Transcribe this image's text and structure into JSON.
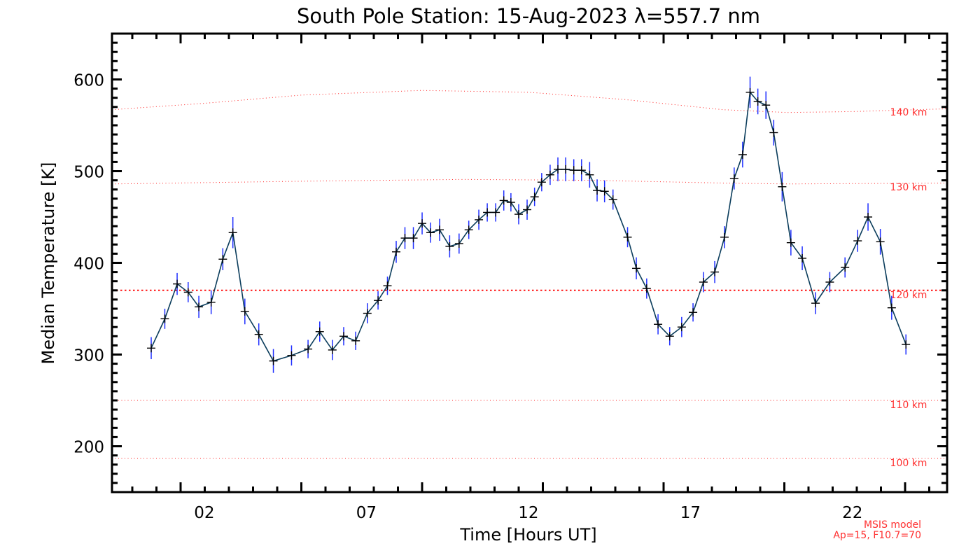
{
  "chart_data": {
    "type": "line",
    "title": "South Pole Station: 15-Aug-2023 λ=557.7 nm",
    "xlabel": "Time [Hours UT]",
    "ylabel": "Median Temperature [K]",
    "xlim": [
      -0.85,
      24.92
    ],
    "ylim": [
      150,
      650
    ],
    "x_ticks": [
      2,
      7,
      12,
      17,
      22
    ],
    "x_tick_labels": [
      "02",
      "07",
      "12",
      "17",
      "22"
    ],
    "y_ticks": [
      200,
      300,
      400,
      500,
      600
    ],
    "y_tick_labels": [
      "200",
      "300",
      "400",
      "500",
      "600"
    ],
    "grid": false,
    "series": [
      {
        "name": "Median Temperature",
        "color": "#0b3d5c",
        "marker_color": "#000000",
        "error_color": "#1f2fff",
        "x": [
          0.36,
          0.78,
          1.16,
          1.5,
          1.83,
          2.21,
          2.57,
          2.88,
          3.25,
          3.68,
          4.13,
          4.69,
          5.2,
          5.56,
          5.95,
          6.3,
          6.67,
          7.03,
          7.36,
          7.65,
          7.92,
          8.19,
          8.45,
          8.72,
          8.98,
          9.26,
          9.57,
          9.86,
          10.16,
          10.47,
          10.73,
          10.99,
          11.24,
          11.46,
          11.7,
          11.96,
          12.19,
          12.41,
          12.67,
          12.91,
          13.15,
          13.4,
          13.64,
          13.89,
          14.12,
          14.35,
          14.61,
          15.06,
          15.33,
          15.65,
          16.0,
          16.36,
          16.73,
          17.08,
          17.4,
          17.75,
          18.05,
          18.35,
          18.61,
          18.84,
          19.08,
          19.33,
          19.57,
          19.83,
          20.1,
          20.45,
          20.86,
          21.3,
          21.77,
          22.16,
          22.48,
          22.86,
          23.21,
          23.65
        ],
        "y": [
          307,
          339,
          377,
          368,
          352,
          357,
          404,
          433,
          347,
          322,
          293,
          299,
          306,
          325,
          305,
          320,
          315,
          345,
          359,
          375,
          412,
          427,
          427,
          443,
          433,
          436,
          418,
          421,
          436,
          447,
          455,
          455,
          468,
          466,
          453,
          458,
          472,
          488,
          496,
          502,
          502,
          501,
          501,
          496,
          479,
          478,
          469,
          428,
          394,
          372,
          333,
          320,
          330,
          346,
          379,
          390,
          428,
          492,
          518,
          586,
          576,
          572,
          542,
          483,
          422,
          405,
          356,
          379,
          395,
          424,
          450,
          423,
          351,
          311
        ],
        "error": [
          12,
          11,
          12,
          11,
          12,
          13,
          12,
          17,
          14,
          12,
          13,
          11,
          10,
          11,
          11,
          10,
          10,
          11,
          10,
          10,
          12,
          12,
          12,
          12,
          11,
          12,
          12,
          11,
          10,
          11,
          10,
          10,
          11,
          10,
          11,
          11,
          10,
          10,
          11,
          13,
          13,
          12,
          12,
          14,
          12,
          12,
          11,
          11,
          12,
          11,
          11,
          10,
          11,
          10,
          11,
          12,
          12,
          12,
          14,
          17,
          14,
          15,
          14,
          16,
          14,
          13,
          12,
          11,
          11,
          12,
          15,
          14,
          13,
          11
        ]
      }
    ],
    "msis": {
      "label_line1": "MSIS model",
      "label_line2": "Ap=15, F10.7=70",
      "color": "#ff2020",
      "curves": [
        {
          "label": "140 km",
          "x": [
            -0.85,
            2,
            5,
            8.7,
            12,
            15,
            18,
            20,
            22,
            24.92
          ],
          "y": [
            567,
            574,
            583,
            588,
            586,
            578,
            567,
            564,
            565,
            568
          ],
          "bold": false
        },
        {
          "label": "130 km",
          "x": [
            -0.85,
            5,
            10,
            14,
            18,
            20,
            24.92
          ],
          "y": [
            486,
            489,
            491,
            490,
            487,
            486,
            487
          ],
          "bold": false
        },
        {
          "label": "120 km",
          "x": [
            -0.85,
            24.92
          ],
          "y": [
            370,
            370
          ],
          "bold": true
        },
        {
          "label": "110 km",
          "x": [
            -0.85,
            24.92
          ],
          "y": [
            250,
            250
          ],
          "bold": false
        },
        {
          "label": "100 km",
          "x": [
            -0.85,
            24.92
          ],
          "y": [
            187,
            187
          ],
          "bold": false
        }
      ]
    }
  }
}
